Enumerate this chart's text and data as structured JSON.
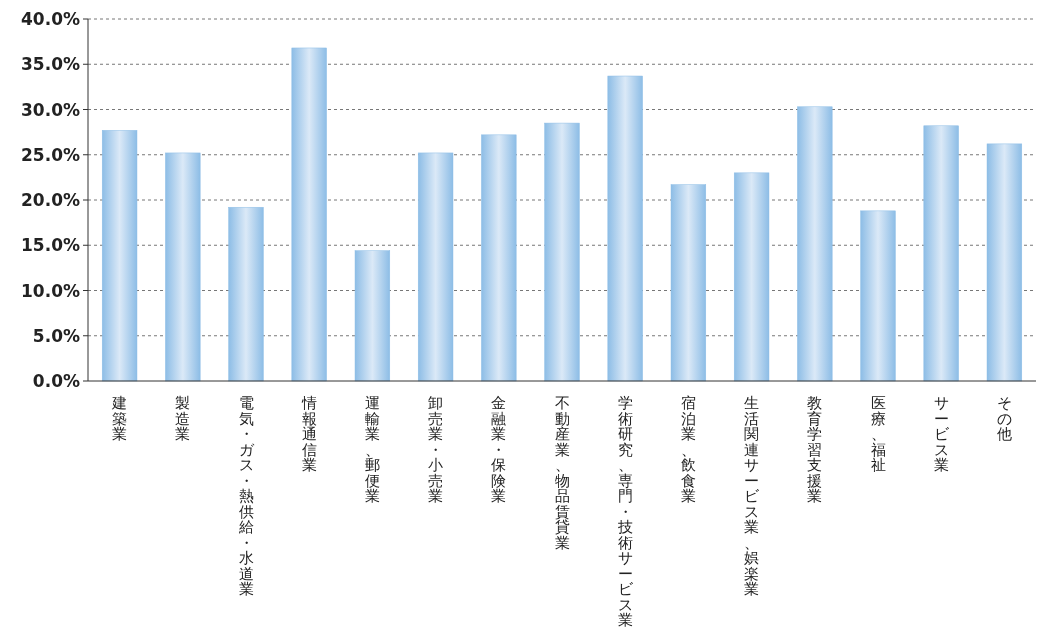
{
  "chart_data": {
    "type": "bar",
    "categories": [
      "建築業",
      "製造業",
      "電気・ガス・熱供給・水道業",
      "情報通信業",
      "運輸業、郵便業",
      "卸売業・小売業",
      "金融業・保険業",
      "不動産業、物品賃貸業",
      "学術研究、専門・技術サービス業",
      "宿泊業、飲食業",
      "生活関連サービス業、娯楽業",
      "教育学習支援業",
      "医療、福祉",
      "サービス業",
      "その他"
    ],
    "values": [
      27.7,
      25.2,
      19.2,
      36.8,
      14.4,
      25.2,
      27.2,
      28.5,
      33.7,
      21.7,
      23.0,
      30.3,
      18.8,
      28.2,
      26.2
    ],
    "color": "#8dbde6",
    "ylim": [
      0,
      40
    ],
    "yticks": [
      {
        "value": 0,
        "label": "0.0%"
      },
      {
        "value": 5,
        "label": "5.0%"
      },
      {
        "value": 10,
        "label": "10.0%"
      },
      {
        "value": 15,
        "label": "15.0%"
      },
      {
        "value": 20,
        "label": "20.0%"
      },
      {
        "value": 25,
        "label": "25.0%"
      },
      {
        "value": 30,
        "label": "30.0%"
      },
      {
        "value": 35,
        "label": "35.0%"
      },
      {
        "value": 40,
        "label": "40.0%"
      }
    ],
    "grid": "y"
  }
}
